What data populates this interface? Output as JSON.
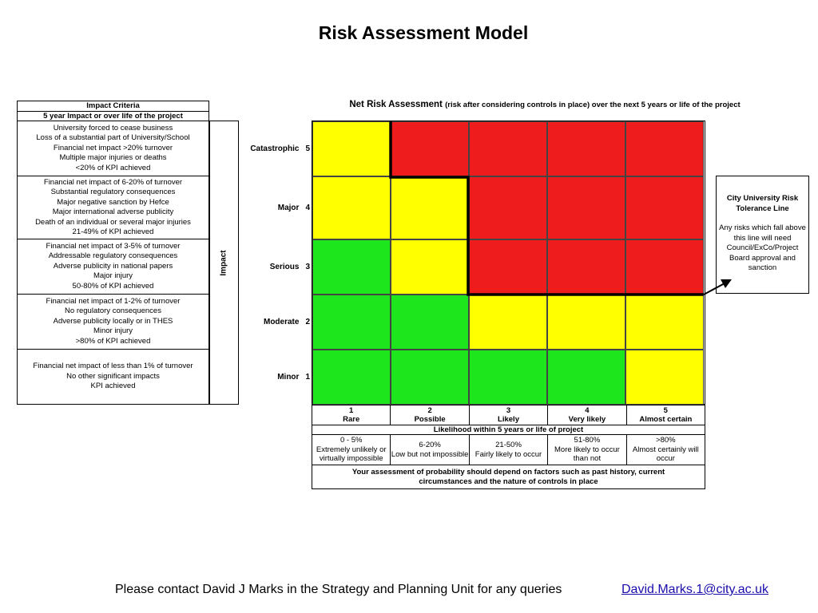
{
  "title": "Risk Assessment Model",
  "impact_criteria": {
    "header": "Impact Criteria",
    "subheader": "5 year Impact or over life of the project",
    "rows": [
      {
        "lines": [
          "University forced to cease business",
          "Loss of a substantial part of University/School",
          "Financial net impact >20% turnover",
          "Multiple major injuries or deaths",
          "<20% of KPI achieved"
        ]
      },
      {
        "lines": [
          "Financial net impact of 6-20% of turnover",
          "Substantial regulatory consequences",
          "Major negative sanction by Hefce",
          "Major international adverse publicity",
          "Death of an individual or several major injuries",
          "21-49% of KPI achieved"
        ]
      },
      {
        "lines": [
          "Financial net impact of 3-5% of turnover",
          "Addressable regulatory consequences",
          "Adverse publicity in national papers",
          "Major injury",
          "50-80% of KPI achieved"
        ]
      },
      {
        "lines": [
          "Financial net impact of 1-2% of turnover",
          "No regulatory consequences",
          "Adverse publicity locally or in THES",
          "Minor injury",
          ">80% of KPI achieved"
        ]
      },
      {
        "lines": [
          "Financial net impact of less than 1% of turnover",
          "No other significant impacts",
          "KPI achieved"
        ]
      }
    ]
  },
  "impact_axis_label": "Impact",
  "severity_levels": [
    {
      "label": "Catastrophic",
      "num": "5"
    },
    {
      "label": "Major",
      "num": "4"
    },
    {
      "label": "Serious",
      "num": "3"
    },
    {
      "label": "Moderate",
      "num": "2"
    },
    {
      "label": "Minor",
      "num": "1"
    }
  ],
  "net_risk": {
    "main": "Net Risk Assessment",
    "sub": "(risk after considering controls in place) over the next 5 years or life of the project"
  },
  "colors": {
    "red": "#ee1c1c",
    "yellow": "#ffff00",
    "green": "#1de61d"
  },
  "matrix": [
    [
      "yellow",
      "red",
      "red",
      "red",
      "red"
    ],
    [
      "yellow",
      "yellow",
      "red",
      "red",
      "red"
    ],
    [
      "green",
      "yellow",
      "red",
      "red",
      "red"
    ],
    [
      "green",
      "green",
      "yellow",
      "yellow",
      "yellow"
    ],
    [
      "green",
      "green",
      "green",
      "green",
      "yellow"
    ]
  ],
  "likelihood": {
    "columns": [
      {
        "num": "1",
        "name": "Rare",
        "range": "0 - 5%",
        "desc": "Extremely unlikely or virtually impossible"
      },
      {
        "num": "2",
        "name": "Possible",
        "range": "6-20%",
        "desc": "Low but not impossible"
      },
      {
        "num": "3",
        "name": "Likely",
        "range": "21-50%",
        "desc": "Fairly likely to occur"
      },
      {
        "num": "4",
        "name": "Very likely",
        "range": "51-80%",
        "desc": "More likely to occur than not"
      },
      {
        "num": "5",
        "name": "Almost certain",
        "range": ">80%",
        "desc": "Almost certainly will occur"
      }
    ],
    "caption": "Likelihood within 5 years or life of project",
    "note": "Your assessment of probability should depend on factors such as past history, current circumstances and the nature of controls in place"
  },
  "tolerance": {
    "title": "City University Risk Tolerance Line",
    "body": "Any risks which fall above this line will need Council/ExCo/Project Board approval and sanction"
  },
  "footer": {
    "text": "Please contact David J Marks in the Strategy and Planning Unit for any queries",
    "email": "David.Marks.1@city.ac.uk"
  }
}
